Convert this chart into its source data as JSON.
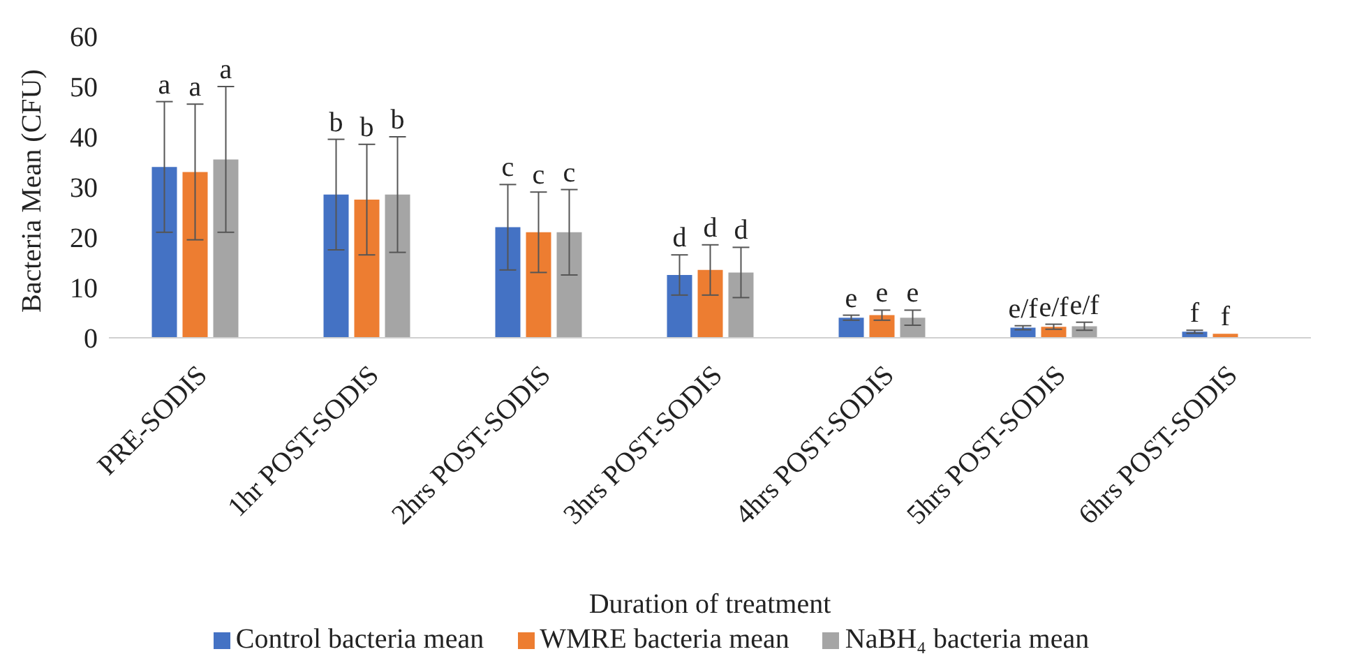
{
  "chart_data": {
    "type": "bar",
    "xlabel": "Duration of treatment",
    "ylabel": "Bacteria Mean (CFU)",
    "categories": [
      "PRE-SODIS",
      "1hr POST-SODIS",
      "2hrs POST-SODIS",
      "3hrs POST-SODIS",
      "4hrs POST-SODIS",
      "5hrs POST-SODIS",
      "6hrs POST-SODIS"
    ],
    "series": [
      {
        "name": "Control bacteria mean",
        "color": "#4472c4",
        "values": [
          34,
          28.5,
          22,
          12.5,
          4,
          2,
          1.2
        ],
        "errors": [
          13,
          11,
          8.5,
          4,
          0.5,
          0.4,
          0.3
        ],
        "value_labels": [
          "a",
          "b",
          "c",
          "d",
          "e",
          "e/f",
          "f"
        ]
      },
      {
        "name": "WMRE bacteria mean",
        "color": "#ed7d31",
        "values": [
          33,
          27.5,
          21,
          13.5,
          4.5,
          2.2,
          0.8
        ],
        "errors": [
          13.5,
          11,
          8,
          5,
          1,
          0.5,
          null
        ],
        "value_labels": [
          "a",
          "b",
          "c",
          "d",
          "e",
          "e/f",
          "f"
        ]
      },
      {
        "name": "NaBH₄ bacteria mean",
        "color": "#a5a5a5",
        "values": [
          35.5,
          28.5,
          21,
          13,
          4,
          2.3,
          null
        ],
        "errors": [
          14.5,
          11.5,
          8.5,
          5,
          1.5,
          0.8,
          null
        ],
        "value_labels": [
          "a",
          "b",
          "c",
          "d",
          "e",
          "e/f",
          null
        ]
      }
    ],
    "ylim": [
      0,
      60
    ],
    "yticks": [
      0,
      10,
      20,
      30,
      40,
      50,
      60
    ],
    "legend": "bottom"
  }
}
